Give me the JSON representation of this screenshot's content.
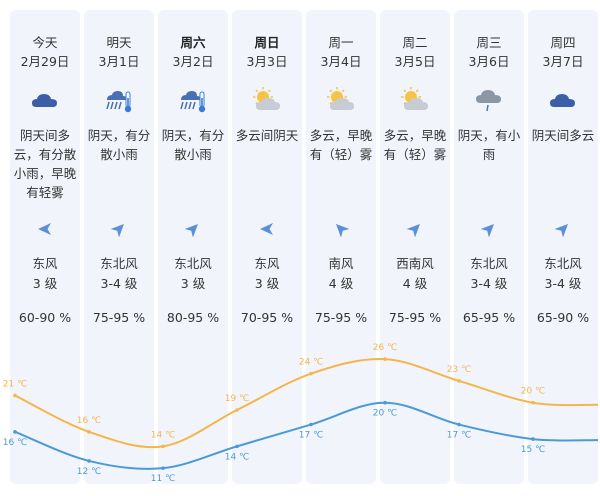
{
  "colors": {
    "card_bg": "#f1f5fb",
    "high_line": "#f5b54a",
    "low_line": "#4b9ad6",
    "wind_arrow": "#5b8fd6"
  },
  "days": [
    {
      "name": "今天",
      "date": "2月29日",
      "bold": false,
      "icon": "cloud-icon",
      "desc": "阴天间多云，有分散小雨，早晚有轻雾",
      "wind_dir": "东风",
      "wind_level": "3 级",
      "humidity": "60-90 %",
      "high": "21 ℃",
      "low": "16 ℃"
    },
    {
      "name": "明天",
      "date": "3月1日",
      "bold": false,
      "icon": "rain-thermometer-icon",
      "desc": "阴天，有分散小雨",
      "wind_dir": "东北风",
      "wind_level": "3-4 级",
      "humidity": "75-95 %",
      "high": "16 ℃",
      "low": "12 ℃"
    },
    {
      "name": "周六",
      "date": "3月2日",
      "bold": true,
      "icon": "rain-thermometer-icon",
      "desc": "阴天，有分散小雨",
      "wind_dir": "东北风",
      "wind_level": "3 级",
      "humidity": "80-95 %",
      "high": "14 ℃",
      "low": "11 ℃"
    },
    {
      "name": "周日",
      "date": "3月3日",
      "bold": true,
      "icon": "partly-cloudy-icon",
      "desc": "多云间阴天",
      "wind_dir": "东风",
      "wind_level": "3 级",
      "humidity": "70-95 %",
      "high": "19 ℃",
      "low": "14 ℃"
    },
    {
      "name": "周一",
      "date": "3月4日",
      "bold": false,
      "icon": "partly-cloudy-icon",
      "desc": "多云，早晚有（轻）雾",
      "wind_dir": "南风",
      "wind_level": "4 级",
      "humidity": "75-95 %",
      "high": "24 ℃",
      "low": "17 ℃"
    },
    {
      "name": "周二",
      "date": "3月5日",
      "bold": false,
      "icon": "partly-cloudy-icon",
      "desc": "多云，早晚有（轻）雾",
      "wind_dir": "西南风",
      "wind_level": "4 级",
      "humidity": "75-95 %",
      "high": "26 ℃",
      "low": "20 ℃"
    },
    {
      "name": "周三",
      "date": "3月6日",
      "bold": false,
      "icon": "light-rain-icon",
      "desc": "阴天，有小雨",
      "wind_dir": "东北风",
      "wind_level": "3-4 级",
      "humidity": "65-95 %",
      "high": "23 ℃",
      "low": "17 ℃"
    },
    {
      "name": "周四",
      "date": "3月7日",
      "bold": false,
      "icon": "cloud-icon",
      "desc": "阴天间多云",
      "wind_dir": "东北风",
      "wind_level": "3-4 级",
      "humidity": "65-90 %",
      "high": "20 ℃",
      "low": "15 ℃"
    }
  ],
  "chart_data": {
    "type": "line",
    "categories": [
      "2月29日",
      "3月1日",
      "3月2日",
      "3月3日",
      "3月4日",
      "3月5日",
      "3月6日",
      "3月7日"
    ],
    "series": [
      {
        "values": [
          21,
          16,
          14,
          19,
          24,
          26,
          23,
          20
        ],
        "color": "#f5b54a"
      },
      {
        "values": [
          16,
          12,
          11,
          14,
          17,
          20,
          17,
          15
        ],
        "color": "#4b9ad6"
      }
    ],
    "unit": "℃",
    "ylim": [
      8,
      30
    ]
  }
}
